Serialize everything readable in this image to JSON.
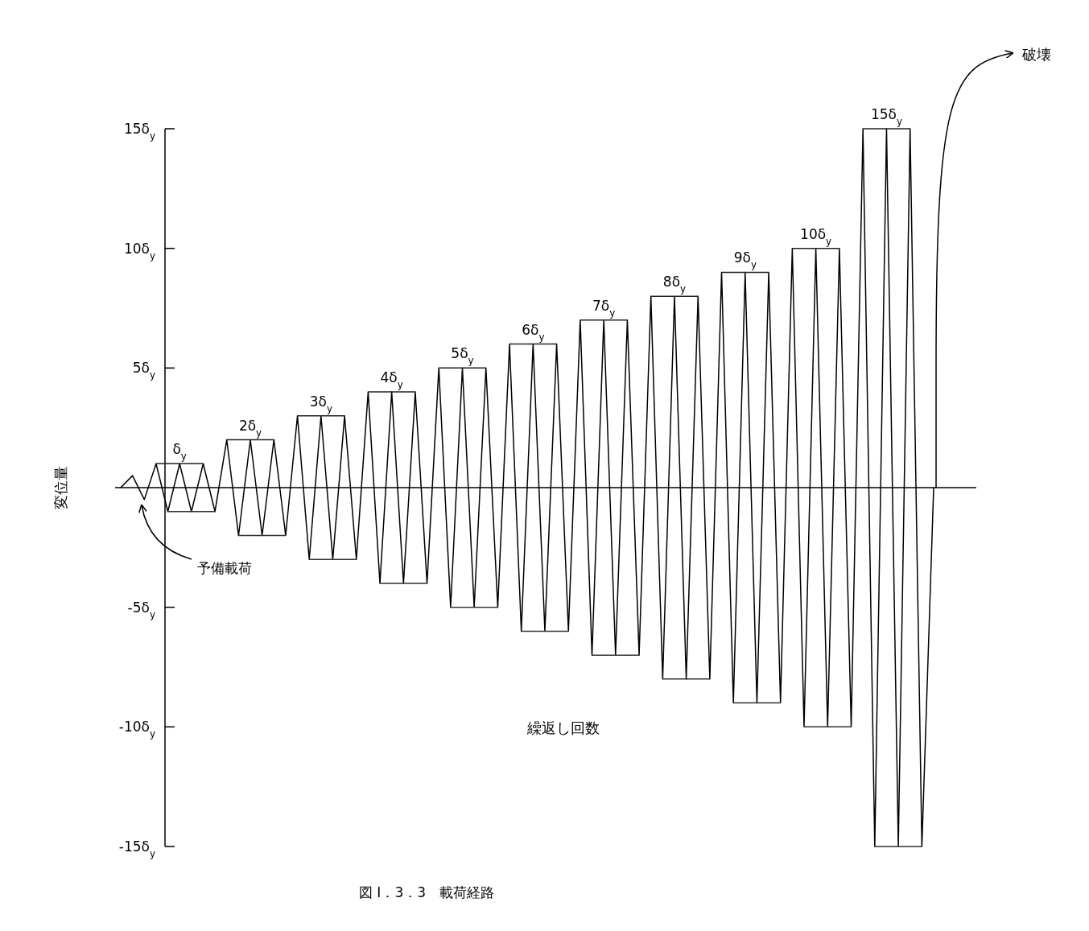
{
  "chart_data": {
    "type": "line",
    "title": "図 I．3．3　載荷経路",
    "xlabel": "繰返し回数",
    "ylabel": "変位量",
    "categories": [
      null,
      null,
      null,
      null,
      null,
      null,
      null,
      null,
      null,
      null,
      null,
      null,
      null,
      null,
      null,
      null,
      null,
      null,
      null,
      null,
      null,
      null,
      null,
      null,
      null,
      null,
      null,
      null,
      null,
      null,
      null,
      null,
      null,
      null,
      null,
      null,
      null,
      null,
      null,
      null,
      null,
      null,
      null,
      null,
      null,
      null,
      null,
      null,
      null,
      null,
      null,
      null,
      null,
      null,
      null,
      null,
      null,
      null,
      null,
      null,
      null,
      null,
      null,
      null,
      null,
      null,
      null,
      null,
      null,
      null
    ],
    "series": [
      {
        "color": "#000000",
        "values": [
          0,
          0.5,
          -0.5,
          1,
          -1,
          1,
          -1,
          1,
          -1,
          2,
          -2,
          2,
          -2,
          2,
          -2,
          3,
          -3,
          3,
          -3,
          3,
          -3,
          4,
          -4,
          4,
          -4,
          4,
          -4,
          5,
          -5,
          5,
          -5,
          5,
          -5,
          6,
          -6,
          6,
          -6,
          6,
          -6,
          7,
          -7,
          7,
          -7,
          7,
          -7,
          8,
          -8,
          8,
          -8,
          8,
          -8,
          9,
          -9,
          9,
          -9,
          9,
          -9,
          10,
          -10,
          10,
          -10,
          10,
          -10,
          15,
          -15,
          15,
          -15,
          15,
          -15,
          0
        ],
        "value_labels": [
          null,
          null,
          null,
          null,
          null,
          "δ$_{y}$",
          null,
          null,
          null,
          null,
          null,
          "2δ$_{y}$",
          null,
          null,
          null,
          null,
          null,
          "3δ$_{y}$",
          null,
          null,
          null,
          null,
          null,
          "4δ$_{y}$",
          null,
          null,
          null,
          null,
          null,
          "5δ$_{y}$",
          null,
          null,
          null,
          null,
          null,
          "6δ$_{y}$",
          null,
          null,
          null,
          null,
          null,
          "7δ$_{y}$",
          null,
          null,
          null,
          null,
          null,
          "8δ$_{y}$",
          null,
          null,
          null,
          null,
          null,
          "9δ$_{y}$",
          null,
          null,
          null,
          null,
          null,
          "10δ$_{y}$",
          null,
          null,
          null,
          null,
          null,
          "15δ$_{y}$",
          null,
          null,
          null,
          null
        ]
      },
      {
        "color": "#222222",
        "values": [
          null,
          null,
          null,
          1,
          1,
          1,
          1,
          1,
          null,
          2,
          2,
          2,
          2,
          2,
          null,
          3,
          3,
          3,
          3,
          3,
          null,
          4,
          4,
          4,
          4,
          4,
          null,
          5,
          5,
          5,
          5,
          5,
          null,
          6,
          6,
          6,
          6,
          6,
          null,
          7,
          7,
          7,
          7,
          7,
          null,
          8,
          8,
          8,
          8,
          8,
          null,
          9,
          9,
          9,
          9,
          9,
          null,
          10,
          10,
          10,
          10,
          10,
          null,
          15,
          15,
          15,
          15,
          15,
          null,
          null
        ]
      },
      {
        "color": "#333333",
        "values": [
          null,
          null,
          null,
          null,
          -1,
          -1,
          -1,
          -1,
          -1,
          null,
          -2,
          -2,
          -2,
          -2,
          -2,
          null,
          -3,
          -3,
          -3,
          -3,
          -3,
          null,
          -4,
          -4,
          -4,
          -4,
          -4,
          null,
          -5,
          -5,
          -5,
          -5,
          -5,
          null,
          -6,
          -6,
          -6,
          -6,
          -6,
          null,
          -7,
          -7,
          -7,
          -7,
          -7,
          null,
          -8,
          -8,
          -8,
          -8,
          -8,
          null,
          -9,
          -9,
          -9,
          -9,
          -9,
          null,
          -10,
          -10,
          -10,
          -10,
          -10,
          null,
          -15,
          -15,
          -15,
          -15,
          -15,
          null
        ]
      }
    ],
    "ylim": [
      -15,
      15
    ],
    "yticks": [
      {
        "value": -15,
        "label": "-15δ$_{y}$"
      },
      {
        "value": -10,
        "label": "-10δ$_{y}$"
      },
      {
        "value": -5,
        "label": "-5δ$_{y}$"
      },
      {
        "value": 5,
        "label": "5δ$_{y}$"
      },
      {
        "value": 10,
        "label": "10δ$_{y}$"
      },
      {
        "value": 15,
        "label": "15δ$_{y}$"
      }
    ],
    "annotations": [
      "予備載荷",
      "破壊"
    ],
    "grid": false,
    "marker": "none",
    "line_style": "solid"
  }
}
